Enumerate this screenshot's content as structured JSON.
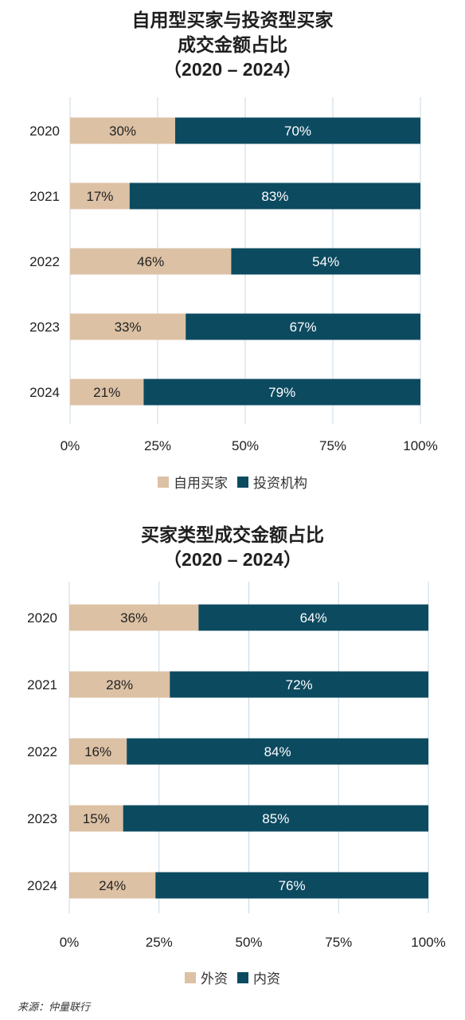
{
  "colors": {
    "primary": "#dcc1a4",
    "secondary": "#0c4a60",
    "grid": "#c9d8e3"
  },
  "chart_data": [
    {
      "type": "bar",
      "orientation": "horizontal",
      "stacked": true,
      "title_lines": [
        "自用型买家与投资型买家",
        "成交金额占比",
        "（2020 – 2024）"
      ],
      "categories": [
        "2020",
        "2021",
        "2022",
        "2023",
        "2024"
      ],
      "series": [
        {
          "name": "自用买家",
          "values": [
            30,
            17,
            46,
            33,
            21
          ],
          "labels": [
            "30%",
            "17%",
            "46%",
            "33%",
            "21%"
          ]
        },
        {
          "name": "投资机构",
          "values": [
            70,
            83,
            54,
            67,
            79
          ],
          "labels": [
            "70%",
            "83%",
            "54%",
            "67%",
            "79%"
          ]
        }
      ],
      "xlim": [
        0,
        100
      ],
      "xticks": [
        "0%",
        "25%",
        "50%",
        "75%",
        "100%"
      ],
      "grid": "vertical",
      "legend_position": "bottom"
    },
    {
      "type": "bar",
      "orientation": "horizontal",
      "stacked": true,
      "title_lines": [
        "买家类型成交金额占比",
        "（2020 – 2024）"
      ],
      "categories": [
        "2020",
        "2021",
        "2022",
        "2023",
        "2024"
      ],
      "series": [
        {
          "name": "外资",
          "values": [
            36,
            28,
            16,
            15,
            24
          ],
          "labels": [
            "36%",
            "28%",
            "16%",
            "15%",
            "24%"
          ]
        },
        {
          "name": "内资",
          "values": [
            64,
            72,
            84,
            85,
            76
          ],
          "labels": [
            "64%",
            "72%",
            "84%",
            "85%",
            "76%"
          ]
        }
      ],
      "xlim": [
        0,
        100
      ],
      "xticks": [
        "0%",
        "25%",
        "50%",
        "75%",
        "100%"
      ],
      "grid": "vertical",
      "legend_position": "bottom"
    }
  ],
  "source": "来源：仲量联行"
}
